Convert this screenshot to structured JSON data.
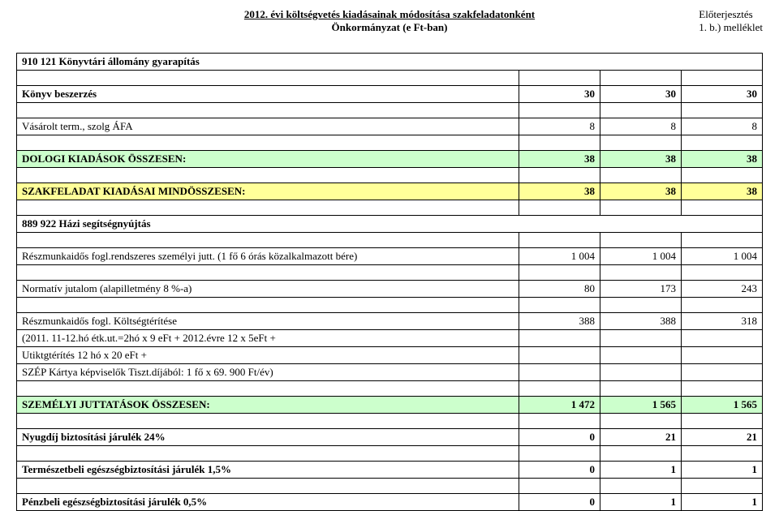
{
  "header": {
    "title_line1": "2012. évi költségvetés kiadásainak módosítása szakfeladatonként",
    "title_line2": "Önkormányzat (e Ft-ban)",
    "right_line1": "Előterjesztés",
    "right_line2": "1. b.) melléklet"
  },
  "colors": {
    "yellow": "#ffff99",
    "green": "#ccffcc",
    "border": "#000000",
    "background": "#ffffff",
    "text": "#000000"
  },
  "rows": [
    {
      "type": "section",
      "label": "910 121 Könyvtári állomány gyarapítás"
    },
    {
      "type": "spacer"
    },
    {
      "type": "data",
      "bold": true,
      "label": "Könyv beszerzés",
      "v1": "30",
      "v2": "30",
      "v3": "30"
    },
    {
      "type": "spacer"
    },
    {
      "type": "data",
      "bold": false,
      "label": "Vásárolt term., szolg ÁFA",
      "v1": "8",
      "v2": "8",
      "v3": "8"
    },
    {
      "type": "spacer"
    },
    {
      "type": "total",
      "class": "green",
      "label": "DOLOGI KIADÁSOK ÖSSZESEN:",
      "v1": "38",
      "v2": "38",
      "v3": "38"
    },
    {
      "type": "spacer"
    },
    {
      "type": "total",
      "class": "yellow",
      "label": "SZAKFELADAT KIADÁSAI MINDÖSSZESEN:",
      "v1": "38",
      "v2": "38",
      "v3": "38"
    },
    {
      "type": "spacer"
    },
    {
      "type": "section",
      "label": "889 922 Házi segítségnyújtás"
    },
    {
      "type": "spacer"
    },
    {
      "type": "data",
      "bold": false,
      "label": "Részmunkaidős fogl.rendszeres személyi jutt. (1 fő 6 órás közalkalmazott bére)",
      "v1": "1 004",
      "v2": "1 004",
      "v3": "1 004"
    },
    {
      "type": "spacer"
    },
    {
      "type": "data",
      "bold": false,
      "label": "Normatív jutalom (alapilletmény 8 %-a)",
      "v1": "80",
      "v2": "173",
      "v3": "243"
    },
    {
      "type": "spacer"
    },
    {
      "type": "data3",
      "bold": false,
      "label1": "Részmunkaidős fogl. Költségtérítése",
      "label2": "(2011. 11-12.hó étk.ut.=2hó x 9 eFt + 2012.évre 12 x 5eFt +",
      "label3": "Utiktgtérítés 12 hó x 20 eFt +",
      "label4": "SZÉP Kártya képviselők Tiszt.díjából: 1 fő x 69. 900 Ft/év)",
      "v1": "388",
      "v2": "388",
      "v3": "318"
    },
    {
      "type": "spacer"
    },
    {
      "type": "total",
      "class": "green",
      "label": "SZEMÉLYI JUTTATÁSOK ÖSSZESEN:",
      "v1": "1 472",
      "v2": "1 565",
      "v3": "1 565"
    },
    {
      "type": "spacer"
    },
    {
      "type": "data",
      "bold": true,
      "label": "Nyugdíj biztosítási járulék 24%",
      "v1": "0",
      "v2": "21",
      "v3": "21"
    },
    {
      "type": "spacer"
    },
    {
      "type": "data",
      "bold": true,
      "label": "Természetbeli egészségbiztosítási járulék 1,5%",
      "v1": "0",
      "v2": "1",
      "v3": "1"
    },
    {
      "type": "spacer"
    },
    {
      "type": "data",
      "bold": true,
      "label": "Pénzbeli egészségbiztosítási járulék 0,5%",
      "v1": "0",
      "v2": "1",
      "v3": "1"
    }
  ]
}
